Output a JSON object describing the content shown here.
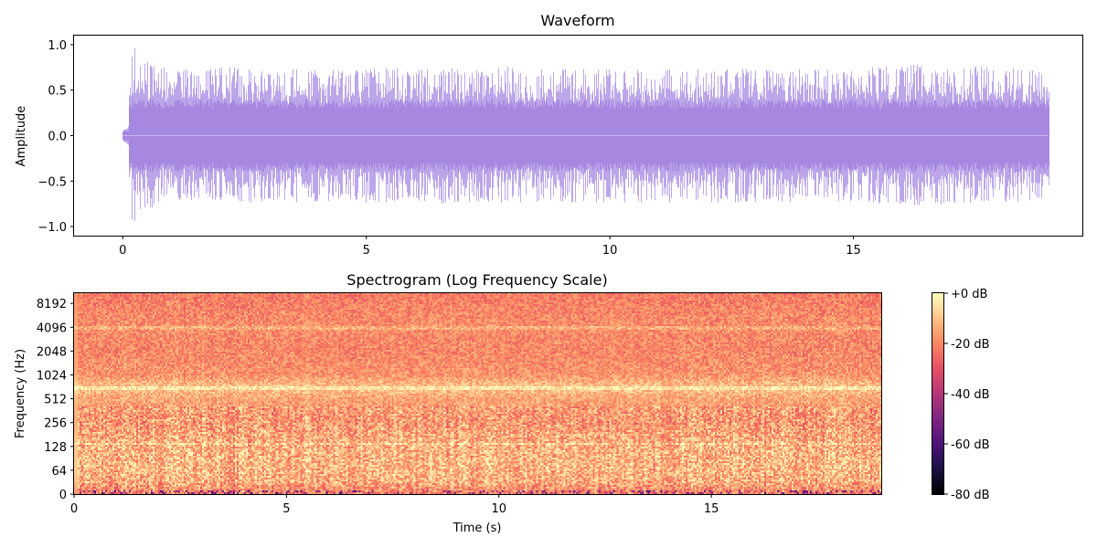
{
  "chart_data": [
    {
      "type": "line",
      "title": "Waveform",
      "xlabel": "",
      "ylabel": "Amplitude",
      "xlim": [
        -1.0,
        19.7
      ],
      "ylim": [
        -1.1,
        1.1
      ],
      "x_ticks": [
        "0",
        "5",
        "10",
        "15"
      ],
      "x_tick_values": [
        0,
        5,
        10,
        15
      ],
      "y_ticks": [
        "1.0",
        "0.5",
        "0.0",
        "−0.5",
        "−1.0"
      ],
      "y_tick_values": [
        1.0,
        0.5,
        0.0,
        -0.5,
        -1.0
      ],
      "duration": 19.0,
      "series_color": "#9370DB",
      "x": [
        0.0,
        0.2,
        0.4,
        0.6,
        0.8,
        1.0,
        1.5,
        2.0,
        2.5,
        3.0,
        3.5,
        4.0,
        4.5,
        5.0,
        5.5,
        6.0,
        6.5,
        7.0,
        7.5,
        8.0,
        8.5,
        9.0,
        9.5,
        10.0,
        10.5,
        11.0,
        11.5,
        12.0,
        12.5,
        13.0,
        13.5,
        14.0,
        14.5,
        15.0,
        15.5,
        16.0,
        16.5,
        17.0,
        17.5,
        18.0,
        18.5,
        19.0
      ],
      "peak": [
        0.2,
        1.0,
        0.85,
        0.8,
        0.78,
        0.75,
        0.72,
        0.75,
        0.76,
        0.72,
        0.74,
        0.73,
        0.72,
        0.74,
        0.75,
        0.72,
        0.76,
        0.73,
        0.74,
        0.77,
        0.75,
        0.74,
        0.73,
        0.76,
        0.74,
        0.72,
        0.75,
        0.74,
        0.76,
        0.73,
        0.74,
        0.75,
        0.72,
        0.73,
        0.76,
        0.8,
        0.78,
        0.75,
        0.78,
        0.77,
        0.74,
        0.7
      ],
      "trough": [
        -0.2,
        -1.0,
        -0.85,
        -0.8,
        -0.76,
        -0.74,
        -0.72,
        -0.74,
        -0.75,
        -0.72,
        -0.74,
        -0.73,
        -0.72,
        -0.74,
        -0.73,
        -0.72,
        -0.75,
        -0.73,
        -0.74,
        -0.76,
        -0.75,
        -0.74,
        -0.73,
        -0.75,
        -0.74,
        -0.72,
        -0.76,
        -0.74,
        -0.75,
        -0.73,
        -0.74,
        -0.75,
        -0.72,
        -0.73,
        -0.75,
        -0.77,
        -0.78,
        -0.75,
        -0.76,
        -0.77,
        -0.74,
        -0.7
      ],
      "rms_band": 0.35,
      "grid": false,
      "legend": "none"
    },
    {
      "type": "heatmap",
      "title": "Spectrogram (Log Frequency Scale)",
      "xlabel": "Time (s)",
      "ylabel": "Frequency (Hz)",
      "xlim": [
        0,
        19.0
      ],
      "x_ticks": [
        "0",
        "5",
        "10",
        "15"
      ],
      "x_tick_values": [
        0,
        5,
        10,
        15
      ],
      "y_scale": "symlog",
      "y_ticks": [
        "0",
        "64",
        "128",
        "256",
        "512",
        "1024",
        "2048",
        "4096",
        "8192"
      ],
      "y_tick_values": [
        0,
        64,
        128,
        256,
        512,
        1024,
        2048,
        4096,
        8192
      ],
      "ylim_hz": [
        0,
        11025
      ],
      "colormap": "magma",
      "colorbar": {
        "range_db": [
          -80,
          0
        ],
        "ticks": [
          "+0 dB",
          "-20 dB",
          "-40 dB",
          "-60 dB",
          "-80 dB"
        ],
        "tick_values": [
          0,
          -20,
          -40,
          -60,
          -80
        ]
      },
      "level_profile_db": {
        "freq_hz": [
          0,
          32,
          64,
          128,
          256,
          512,
          700,
          1024,
          2048,
          4096,
          8192,
          11025
        ],
        "mean_db": [
          -22,
          -14,
          -12,
          -13,
          -17,
          -15,
          -9,
          -18,
          -20,
          -19,
          -21,
          -22
        ]
      },
      "bright_lines_hz": [
        140,
        700,
        4000
      ]
    }
  ]
}
